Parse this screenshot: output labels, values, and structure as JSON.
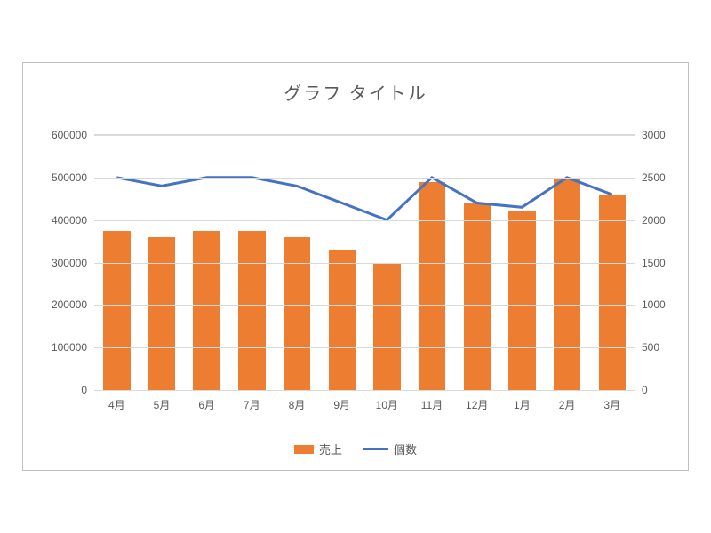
{
  "chart": {
    "type": "bar+line",
    "title": "グラフ タイトル",
    "title_fontsize": 20,
    "title_color": "#595959",
    "background_color": "#ffffff",
    "frame_border_color": "#c0c0c0",
    "grid_color": "#d9d9d9",
    "label_fontsize": 12,
    "label_color": "#595959",
    "bar_color": "#ed7d31",
    "line_color": "#4472c4",
    "line_width": 3,
    "bar_width_ratio": 0.6,
    "categories": [
      "4月",
      "5月",
      "6月",
      "7月",
      "8月",
      "9月",
      "10月",
      "11月",
      "12月",
      "1月",
      "2月",
      "3月"
    ],
    "bar_series": {
      "name": "売上",
      "axis": "left",
      "values": [
        375000,
        360000,
        375000,
        375000,
        360000,
        330000,
        300000,
        490000,
        440000,
        420000,
        495000,
        460000
      ]
    },
    "line_series": {
      "name": "個数",
      "axis": "right",
      "values": [
        2500,
        2400,
        2500,
        2500,
        2400,
        2200,
        2000,
        2500,
        2200,
        2150,
        2500,
        2300
      ]
    },
    "y_left": {
      "min": 0,
      "max": 600000,
      "step": 100000,
      "ticks": [
        0,
        100000,
        200000,
        300000,
        400000,
        500000,
        600000
      ]
    },
    "y_right": {
      "min": 0,
      "max": 3000,
      "step": 500,
      "ticks": [
        0,
        500,
        1000,
        1500,
        2000,
        2500,
        3000
      ]
    },
    "legend": {
      "position": "bottom",
      "items": [
        "売上",
        "個数"
      ]
    }
  }
}
